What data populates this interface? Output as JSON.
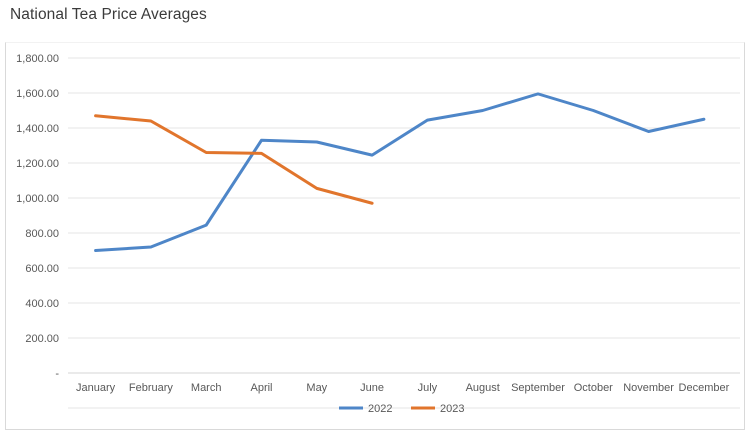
{
  "title": "National Tea Price Averages",
  "chart_data": {
    "type": "line",
    "title": "National Tea Price Averages",
    "categories": [
      "January",
      "February",
      "March",
      "April",
      "May",
      "June",
      "July",
      "August",
      "September",
      "October",
      "November",
      "December"
    ],
    "series": [
      {
        "name": "2022",
        "color": "#4e86c8",
        "values": [
          700,
          720,
          845,
          1330,
          1320,
          1245,
          1445,
          1500,
          1595,
          1500,
          1380,
          1450
        ]
      },
      {
        "name": "2023",
        "color": "#e1752c",
        "values": [
          1470,
          1440,
          1260,
          1255,
          1055,
          970,
          null,
          null,
          null,
          null,
          null,
          null
        ]
      }
    ],
    "y_axis": {
      "min": 0,
      "max": 1800,
      "step": 200,
      "tick_labels_top_to_bottom": [
        "1,800.00",
        "1,600.00",
        "1,400.00",
        "1,200.00",
        "1,000.00",
        "800.00",
        "600.00",
        "400.00",
        "200.00",
        "-"
      ]
    },
    "grid": "horizontal",
    "legend_position": "bottom-center",
    "legend": [
      {
        "label": "2022",
        "color": "#4e86c8"
      },
      {
        "label": "2023",
        "color": "#e1752c"
      }
    ],
    "style": {
      "gridline_color": "#e4e4e4",
      "baseline_color": "#d6d6d6",
      "axis_text_color": "#595959",
      "line_width": 3
    }
  }
}
